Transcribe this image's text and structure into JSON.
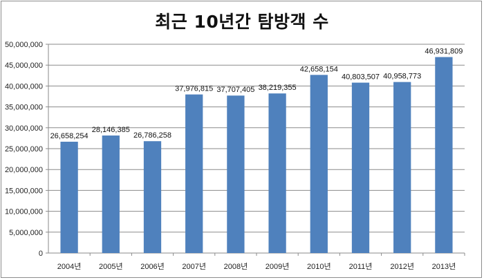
{
  "chart_data": {
    "type": "bar",
    "title": "최근 10년간 탐방객 수",
    "categories": [
      "2004년",
      "2005년",
      "2006년",
      "2007년",
      "2008년",
      "2009년",
      "2010년",
      "2011년",
      "2012년",
      "2013년"
    ],
    "values": [
      26658254,
      28146385,
      26786258,
      37976815,
      37707405,
      38219355,
      42658154,
      40803507,
      40958773,
      46931809
    ],
    "data_labels": [
      "26,658,254",
      "28,146,385",
      "26,786,258",
      "37,976,815",
      "37,707,405",
      "38,219,355",
      "42,658,154",
      "40,803,507",
      "40,958,773",
      "46,931,809"
    ],
    "y_ticks": [
      "0",
      "5,000,000",
      "10,000,000",
      "15,000,000",
      "20,000,000",
      "25,000,000",
      "30,000,000",
      "35,000,000",
      "40,000,000",
      "45,000,000",
      "50,000,000"
    ],
    "ylim": [
      0,
      50000000
    ],
    "grid": true,
    "bar_color": "#4f81bd",
    "xlabel": "",
    "ylabel": ""
  }
}
